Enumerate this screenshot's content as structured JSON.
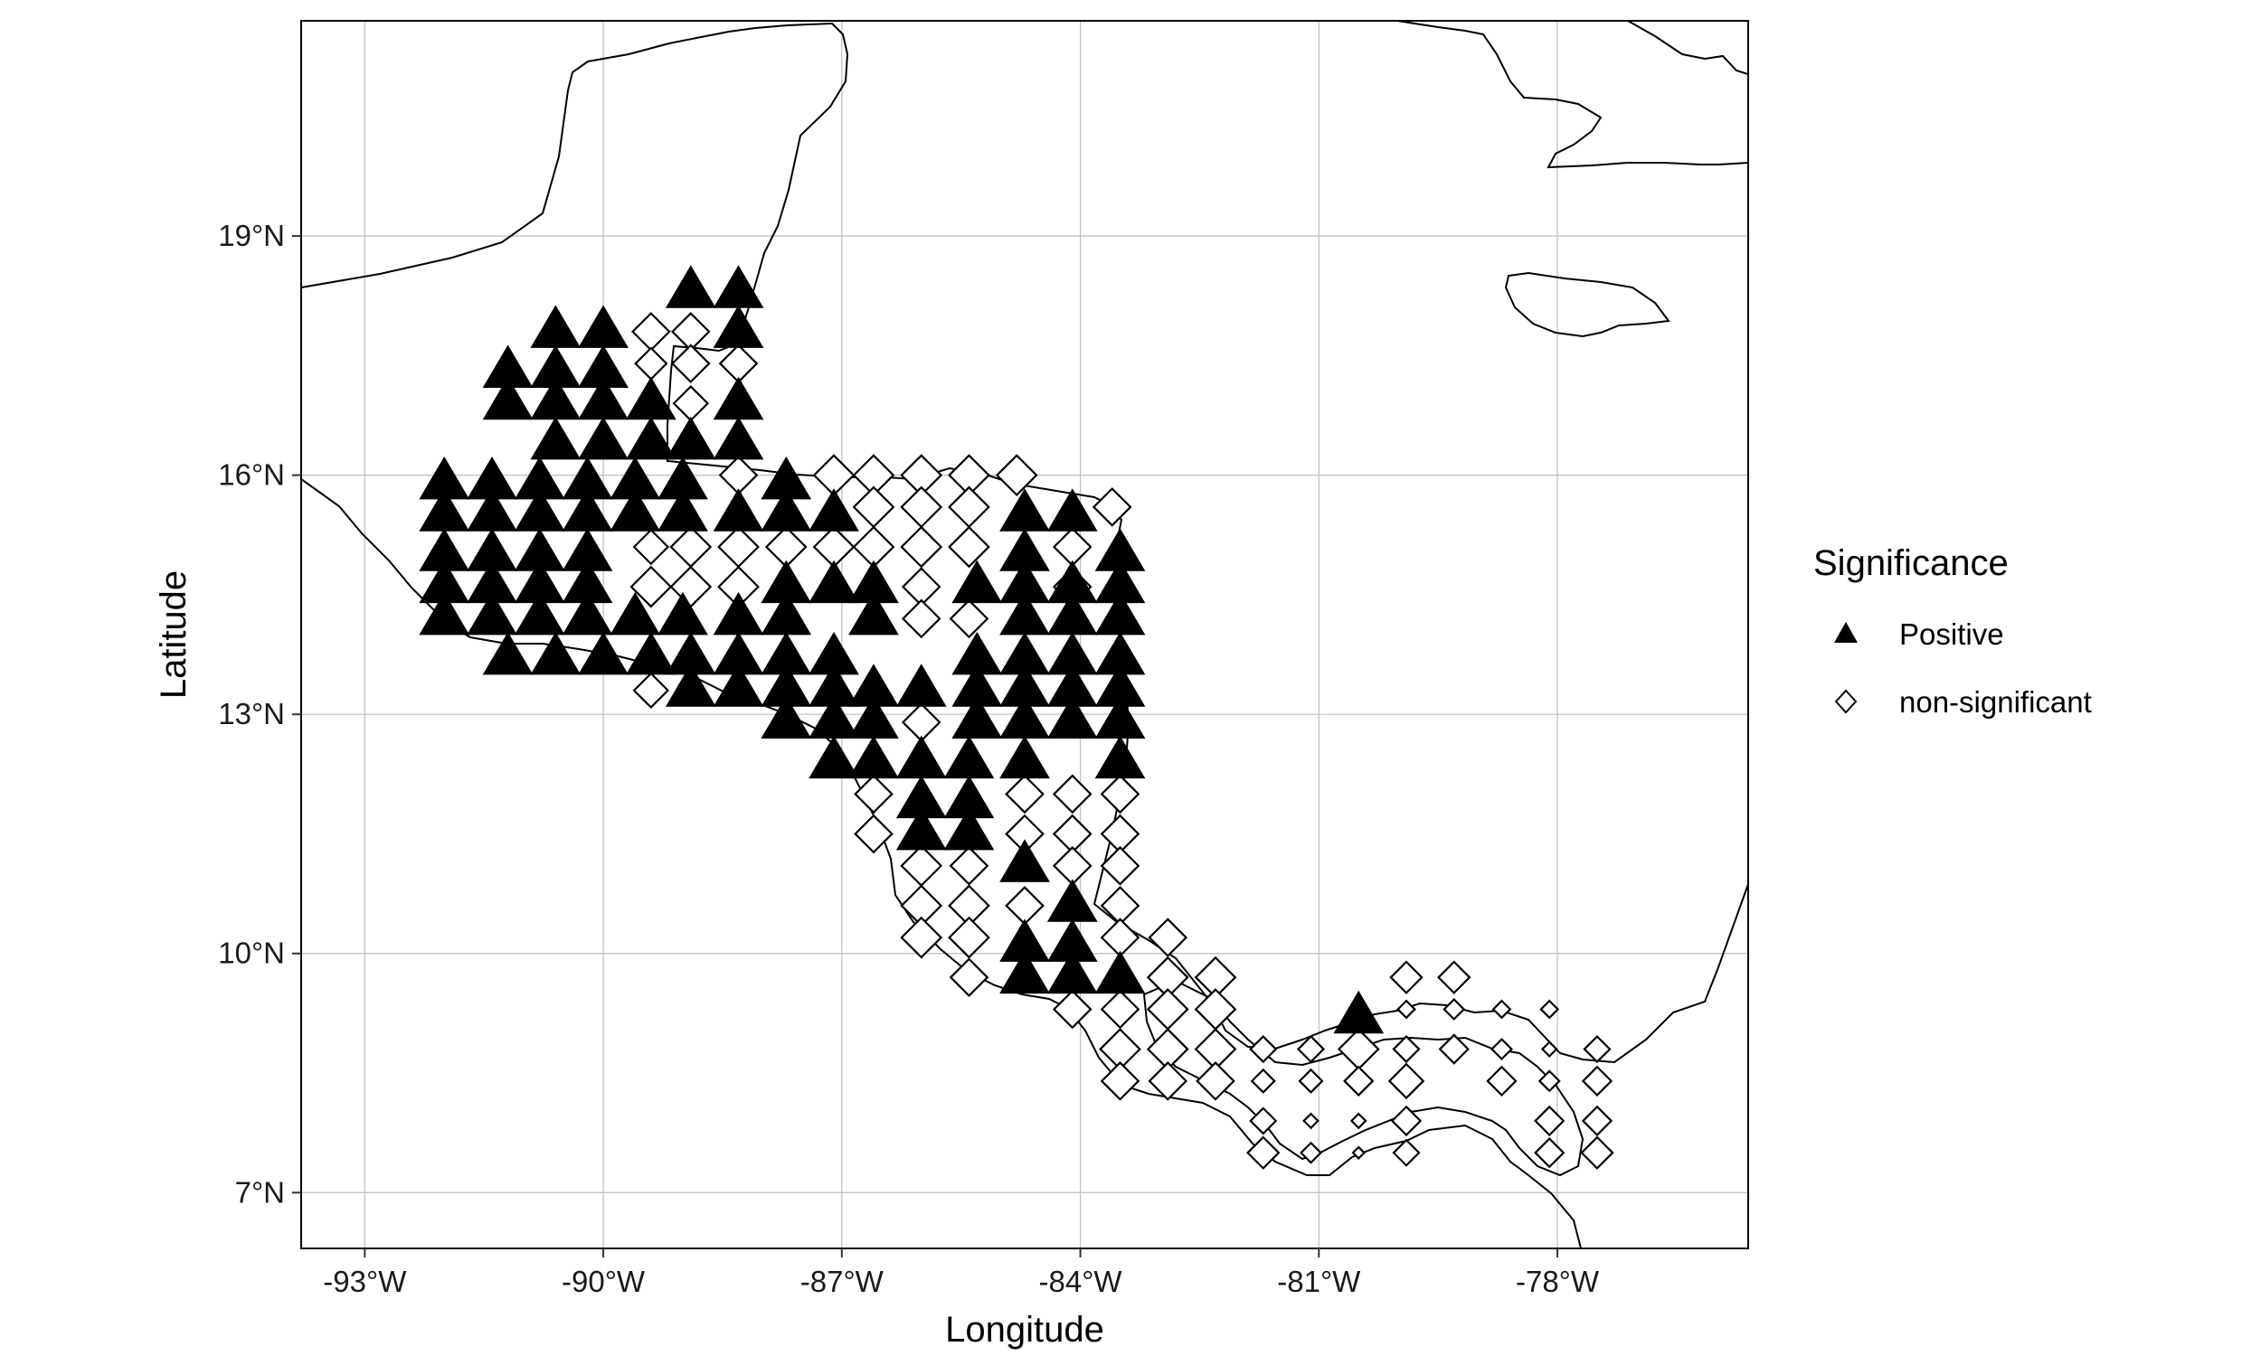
{
  "chart_data": {
    "type": "scatter",
    "xlabel": "Longitude",
    "ylabel": "Latitude",
    "xlim": [
      -93.8,
      -75.6
    ],
    "ylim": [
      6.3,
      21.7
    ],
    "x_ticks": [
      {
        "value": -93,
        "label": "-93°W"
      },
      {
        "value": -90,
        "label": "-90°W"
      },
      {
        "value": -87,
        "label": "-87°W"
      },
      {
        "value": -84,
        "label": "-84°W"
      },
      {
        "value": -81,
        "label": "-81°W"
      },
      {
        "value": -78,
        "label": "-78°W"
      }
    ],
    "y_ticks": [
      {
        "value": 7,
        "label": "7°N"
      },
      {
        "value": 10,
        "label": "10°N"
      },
      {
        "value": 13,
        "label": "13°N"
      },
      {
        "value": 16,
        "label": "16°N"
      },
      {
        "value": 19,
        "label": "19°N"
      }
    ],
    "grid": true,
    "legend": {
      "title": "Significance",
      "position": "right",
      "entries": [
        {
          "label": "Positive",
          "shape": "filled-triangle",
          "color": "#000000"
        },
        {
          "label": "non-significant",
          "shape": "open-diamond",
          "color": "#000000"
        }
      ]
    },
    "series": [
      {
        "name": "Positive",
        "shape": "triangle",
        "filled": true,
        "points": [
          [
            -88.9,
            18.3
          ],
          [
            -88.3,
            18.3
          ],
          [
            -88.3,
            17.8
          ],
          [
            -90.6,
            17.8
          ],
          [
            -90.0,
            17.8
          ],
          [
            -91.2,
            17.3
          ],
          [
            -91.2,
            16.9
          ],
          [
            -90.6,
            17.3
          ],
          [
            -90.0,
            17.3
          ],
          [
            -90.6,
            16.9
          ],
          [
            -90.0,
            16.9
          ],
          [
            -89.4,
            16.9
          ],
          [
            -88.3,
            16.9
          ],
          [
            -90.6,
            16.4
          ],
          [
            -90.0,
            16.4
          ],
          [
            -89.4,
            16.4
          ],
          [
            -88.9,
            16.4
          ],
          [
            -88.3,
            16.4
          ],
          [
            -92.0,
            15.9
          ],
          [
            -91.4,
            15.9
          ],
          [
            -90.8,
            15.9
          ],
          [
            -90.2,
            15.9
          ],
          [
            -89.6,
            15.9
          ],
          [
            -89.0,
            15.9
          ],
          [
            -87.7,
            15.9
          ],
          [
            -92.0,
            15.5
          ],
          [
            -91.4,
            15.5
          ],
          [
            -90.8,
            15.5
          ],
          [
            -90.2,
            15.5
          ],
          [
            -89.6,
            15.5
          ],
          [
            -89.0,
            15.5
          ],
          [
            -88.3,
            15.5
          ],
          [
            -87.7,
            15.5
          ],
          [
            -87.1,
            15.5
          ],
          [
            -84.7,
            15.5
          ],
          [
            -84.1,
            15.5
          ],
          [
            -83.5,
            15.0
          ],
          [
            -92.0,
            15.0
          ],
          [
            -91.4,
            15.0
          ],
          [
            -90.8,
            15.0
          ],
          [
            -90.2,
            15.0
          ],
          [
            -84.7,
            15.0
          ],
          [
            -83.5,
            14.6
          ],
          [
            -92.0,
            14.6
          ],
          [
            -91.4,
            14.6
          ],
          [
            -90.8,
            14.6
          ],
          [
            -90.2,
            14.6
          ],
          [
            -87.7,
            14.6
          ],
          [
            -87.1,
            14.6
          ],
          [
            -86.6,
            14.6
          ],
          [
            -85.3,
            14.6
          ],
          [
            -84.7,
            14.6
          ],
          [
            -84.1,
            14.6
          ],
          [
            -92.0,
            14.2
          ],
          [
            -91.4,
            14.2
          ],
          [
            -90.8,
            14.2
          ],
          [
            -90.2,
            14.2
          ],
          [
            -89.6,
            14.2
          ],
          [
            -89.0,
            14.2
          ],
          [
            -88.3,
            14.2
          ],
          [
            -87.7,
            14.2
          ],
          [
            -86.6,
            14.2
          ],
          [
            -84.7,
            14.2
          ],
          [
            -84.1,
            14.2
          ],
          [
            -83.5,
            14.2
          ],
          [
            -91.2,
            13.7
          ],
          [
            -90.6,
            13.7
          ],
          [
            -90.0,
            13.7
          ],
          [
            -89.4,
            13.7
          ],
          [
            -88.9,
            13.7
          ],
          [
            -88.3,
            13.7
          ],
          [
            -87.7,
            13.7
          ],
          [
            -87.1,
            13.7
          ],
          [
            -85.3,
            13.7
          ],
          [
            -84.7,
            13.7
          ],
          [
            -84.1,
            13.7
          ],
          [
            -83.5,
            13.7
          ],
          [
            -88.9,
            13.3
          ],
          [
            -88.3,
            13.3
          ],
          [
            -87.7,
            13.3
          ],
          [
            -87.1,
            13.3
          ],
          [
            -86.6,
            13.3
          ],
          [
            -86.0,
            13.3
          ],
          [
            -85.3,
            13.3
          ],
          [
            -84.7,
            13.3
          ],
          [
            -84.1,
            13.3
          ],
          [
            -83.5,
            13.3
          ],
          [
            -87.7,
            12.9
          ],
          [
            -87.1,
            12.9
          ],
          [
            -86.6,
            12.9
          ],
          [
            -85.3,
            12.9
          ],
          [
            -84.7,
            12.9
          ],
          [
            -84.1,
            12.9
          ],
          [
            -83.5,
            12.9
          ],
          [
            -87.1,
            12.4
          ],
          [
            -86.6,
            12.4
          ],
          [
            -86.0,
            12.4
          ],
          [
            -85.4,
            12.4
          ],
          [
            -84.7,
            12.4
          ],
          [
            -83.5,
            12.4
          ],
          [
            -86.0,
            11.9
          ],
          [
            -85.4,
            11.9
          ],
          [
            -86.0,
            11.5
          ],
          [
            -85.4,
            11.5
          ],
          [
            -84.7,
            11.1
          ],
          [
            -84.1,
            10.6
          ],
          [
            -84.7,
            10.1
          ],
          [
            -84.1,
            10.1
          ],
          [
            -84.7,
            9.7
          ],
          [
            -84.1,
            9.7
          ],
          [
            -83.5,
            9.7
          ],
          [
            -80.5,
            9.2
          ]
        ]
      },
      {
        "name": "non-significant",
        "shape": "diamond",
        "filled": false,
        "points": [
          [
            -89.4,
            17.8,
            26
          ],
          [
            -88.9,
            17.8,
            26
          ],
          [
            -88.9,
            17.4,
            26
          ],
          [
            -88.3,
            17.4,
            26
          ],
          [
            -88.9,
            16.9,
            24
          ],
          [
            -89.4,
            17.4,
            22
          ],
          [
            -89.4,
            16.9,
            20
          ],
          [
            -88.3,
            16.0,
            26
          ],
          [
            -86.6,
            16.0,
            28
          ],
          [
            -86.0,
            16.0,
            28
          ],
          [
            -87.1,
            16.0,
            28
          ],
          [
            -85.4,
            16.0,
            28
          ],
          [
            -84.8,
            16.0,
            28
          ],
          [
            -86.6,
            15.6,
            28
          ],
          [
            -86.0,
            15.6,
            28
          ],
          [
            -85.4,
            15.6,
            28
          ],
          [
            -83.6,
            15.6,
            26
          ],
          [
            -89.4,
            15.1,
            24
          ],
          [
            -88.9,
            15.1,
            28
          ],
          [
            -88.3,
            15.1,
            28
          ],
          [
            -87.7,
            15.1,
            28
          ],
          [
            -87.1,
            15.1,
            28
          ],
          [
            -86.6,
            15.1,
            28
          ],
          [
            -86.0,
            15.1,
            28
          ],
          [
            -85.4,
            15.1,
            28
          ],
          [
            -84.1,
            15.1,
            26
          ],
          [
            -89.4,
            14.6,
            28
          ],
          [
            -88.9,
            14.6,
            28
          ],
          [
            -88.3,
            14.6,
            28
          ],
          [
            -86.0,
            14.6,
            26
          ],
          [
            -84.1,
            14.6,
            26
          ],
          [
            -86.0,
            14.2,
            26
          ],
          [
            -85.4,
            14.2,
            26
          ],
          [
            -89.4,
            13.3,
            24
          ],
          [
            -86.0,
            12.9,
            26
          ],
          [
            -86.6,
            12.0,
            26
          ],
          [
            -84.7,
            12.0,
            26
          ],
          [
            -84.1,
            12.0,
            26
          ],
          [
            -83.5,
            12.0,
            26
          ],
          [
            -86.6,
            11.5,
            26
          ],
          [
            -85.4,
            11.5,
            20
          ],
          [
            -84.7,
            11.5,
            26
          ],
          [
            -84.1,
            11.5,
            26
          ],
          [
            -83.5,
            11.5,
            26
          ],
          [
            -86.0,
            11.1,
            28
          ],
          [
            -85.4,
            11.1,
            26
          ],
          [
            -84.1,
            11.1,
            26
          ],
          [
            -83.5,
            11.1,
            26
          ],
          [
            -86.0,
            10.6,
            28
          ],
          [
            -85.4,
            10.6,
            28
          ],
          [
            -84.7,
            10.6,
            26
          ],
          [
            -83.5,
            10.6,
            26
          ],
          [
            -86.0,
            10.2,
            28
          ],
          [
            -85.4,
            10.2,
            28
          ],
          [
            -83.5,
            10.2,
            26
          ],
          [
            -82.9,
            10.2,
            26
          ],
          [
            -85.4,
            9.7,
            26
          ],
          [
            -82.9,
            9.7,
            28
          ],
          [
            -82.3,
            9.7,
            28
          ],
          [
            -84.1,
            9.3,
            26
          ],
          [
            -83.5,
            9.3,
            26
          ],
          [
            -82.9,
            9.3,
            28
          ],
          [
            -82.3,
            9.3,
            28
          ],
          [
            -83.5,
            8.8,
            28
          ],
          [
            -82.9,
            8.8,
            28
          ],
          [
            -82.3,
            8.8,
            28
          ],
          [
            -81.7,
            8.8,
            18
          ],
          [
            -81.1,
            8.8,
            18
          ],
          [
            -80.5,
            8.8,
            28
          ],
          [
            -79.9,
            8.8,
            18
          ],
          [
            -79.3,
            8.8,
            20
          ],
          [
            -78.7,
            8.8,
            14
          ],
          [
            -78.1,
            8.8,
            10
          ],
          [
            -77.5,
            8.8,
            18
          ],
          [
            -83.5,
            8.4,
            26
          ],
          [
            -82.9,
            8.4,
            26
          ],
          [
            -82.3,
            8.4,
            26
          ],
          [
            -81.7,
            8.4,
            16
          ],
          [
            -81.1,
            8.4,
            16
          ],
          [
            -80.5,
            8.4,
            20
          ],
          [
            -79.9,
            8.4,
            24
          ],
          [
            -78.7,
            8.4,
            20
          ],
          [
            -78.1,
            8.4,
            14
          ],
          [
            -77.5,
            8.4,
            20
          ],
          [
            -81.7,
            7.9,
            18
          ],
          [
            -81.1,
            7.9,
            10
          ],
          [
            -80.5,
            7.9,
            10
          ],
          [
            -79.9,
            7.9,
            20
          ],
          [
            -78.1,
            7.9,
            20
          ],
          [
            -77.5,
            7.9,
            20
          ],
          [
            -81.7,
            7.5,
            22
          ],
          [
            -81.1,
            7.5,
            14
          ],
          [
            -80.5,
            7.5,
            8
          ],
          [
            -79.9,
            7.5,
            18
          ],
          [
            -78.1,
            7.5,
            20
          ],
          [
            -77.5,
            7.5,
            22
          ],
          [
            -79.9,
            9.7,
            22
          ],
          [
            -79.3,
            9.7,
            22
          ],
          [
            -80.5,
            9.3,
            14
          ],
          [
            -79.9,
            9.3,
            12
          ],
          [
            -79.3,
            9.3,
            14
          ],
          [
            -78.7,
            9.3,
            12
          ],
          [
            -78.1,
            9.3,
            12
          ]
        ]
      }
    ]
  }
}
